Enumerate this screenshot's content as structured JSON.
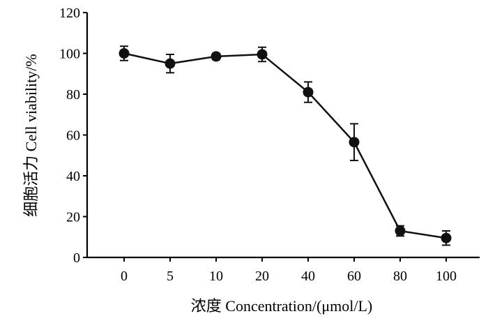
{
  "chart_data": {
    "type": "line",
    "xlabel": "浓度 Concentration/(μmol/L)",
    "ylabel": "细胞活力 Cell viability/%",
    "categories": [
      "0",
      "5",
      "10",
      "20",
      "40",
      "60",
      "80",
      "100"
    ],
    "series": [
      {
        "values": [
          100,
          95,
          98.5,
          99.5,
          81,
          56.5,
          13,
          9.5
        ],
        "error": [
          3.5,
          4.5,
          1.5,
          3.5,
          5,
          9,
          2.5,
          3.5
        ]
      }
    ],
    "ylim": [
      0,
      120
    ],
    "yticks": [
      0,
      20,
      40,
      60,
      80,
      100,
      120
    ],
    "grid": false,
    "legend": "none",
    "marker": "filled-circle",
    "color": "#111111"
  }
}
